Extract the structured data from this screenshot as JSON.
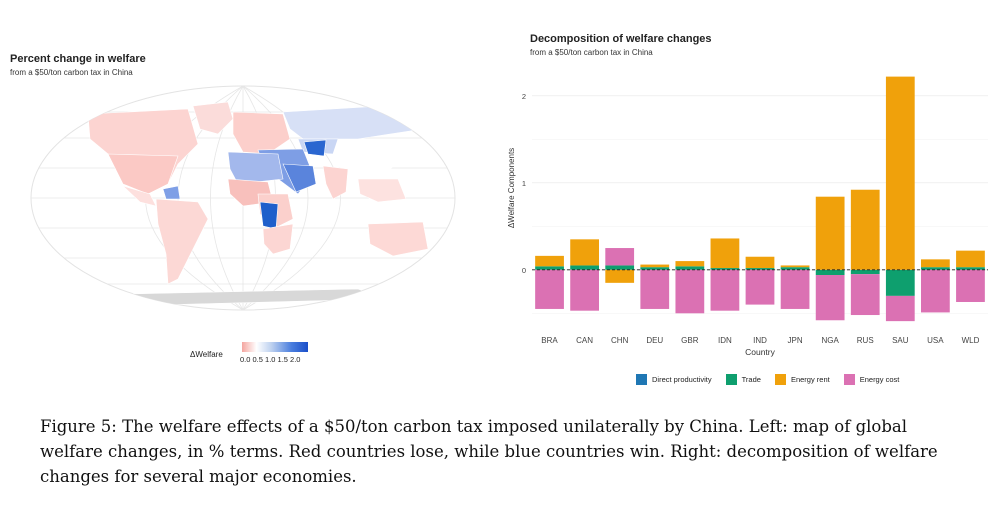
{
  "left_panel": {
    "title": "Percent change in welfare",
    "subtitle": "from a $50/ton carbon tax in China",
    "legend_label": "ΔWelfare",
    "legend_ticks": "0.0 0.5 1.0 1.5 2.0"
  },
  "right_panel": {
    "title": "Decomposition of welfare changes",
    "subtitle": "from a $50/ton carbon tax in China"
  },
  "chart_data": {
    "type": "bar",
    "stacked": true,
    "title": "Decomposition of welfare changes",
    "subtitle": "from a $50/ton carbon tax in China",
    "xlabel": "Country",
    "ylabel": "ΔWelfare Components",
    "categories": [
      "BRA",
      "CAN",
      "CHN",
      "DEU",
      "GBR",
      "IDN",
      "IND",
      "JPN",
      "NGA",
      "RUS",
      "SAU",
      "USA",
      "WLD"
    ],
    "yticks": [
      0,
      1,
      2
    ],
    "ylim": [
      -0.6,
      2.25
    ],
    "reference_line": 0,
    "series": [
      {
        "name": "Direct productivity",
        "color": "#1f77b4",
        "values": [
          0,
          0,
          0,
          0,
          0,
          0,
          0,
          0,
          0,
          0,
          0,
          0,
          0
        ]
      },
      {
        "name": "Trade",
        "color": "#0e9f6e",
        "values": [
          0.04,
          0.05,
          0.05,
          0.03,
          0.04,
          0.02,
          0.02,
          0.03,
          -0.06,
          -0.05,
          -0.3,
          0.03,
          0.03
        ]
      },
      {
        "name": "Energy rent",
        "color": "#f0a10b",
        "values": [
          0.12,
          0.3,
          -0.15,
          0.03,
          0.06,
          0.34,
          0.13,
          0.02,
          0.84,
          0.92,
          2.22,
          0.09,
          0.19
        ]
      },
      {
        "name": "Energy cost",
        "color": "#db71b3",
        "values": [
          -0.45,
          -0.47,
          0.2,
          -0.45,
          -0.5,
          -0.47,
          -0.4,
          -0.45,
          -0.52,
          -0.47,
          -0.29,
          -0.49,
          -0.37
        ]
      }
    ],
    "legend_position": "bottom"
  },
  "caption": "Figure 5: The welfare effects of a $50/ton carbon tax imposed unilaterally by China. Left: map of global welfare changes, in % terms. Red countries lose, while blue countries win. Right: decomposition of welfare changes for several major economies."
}
